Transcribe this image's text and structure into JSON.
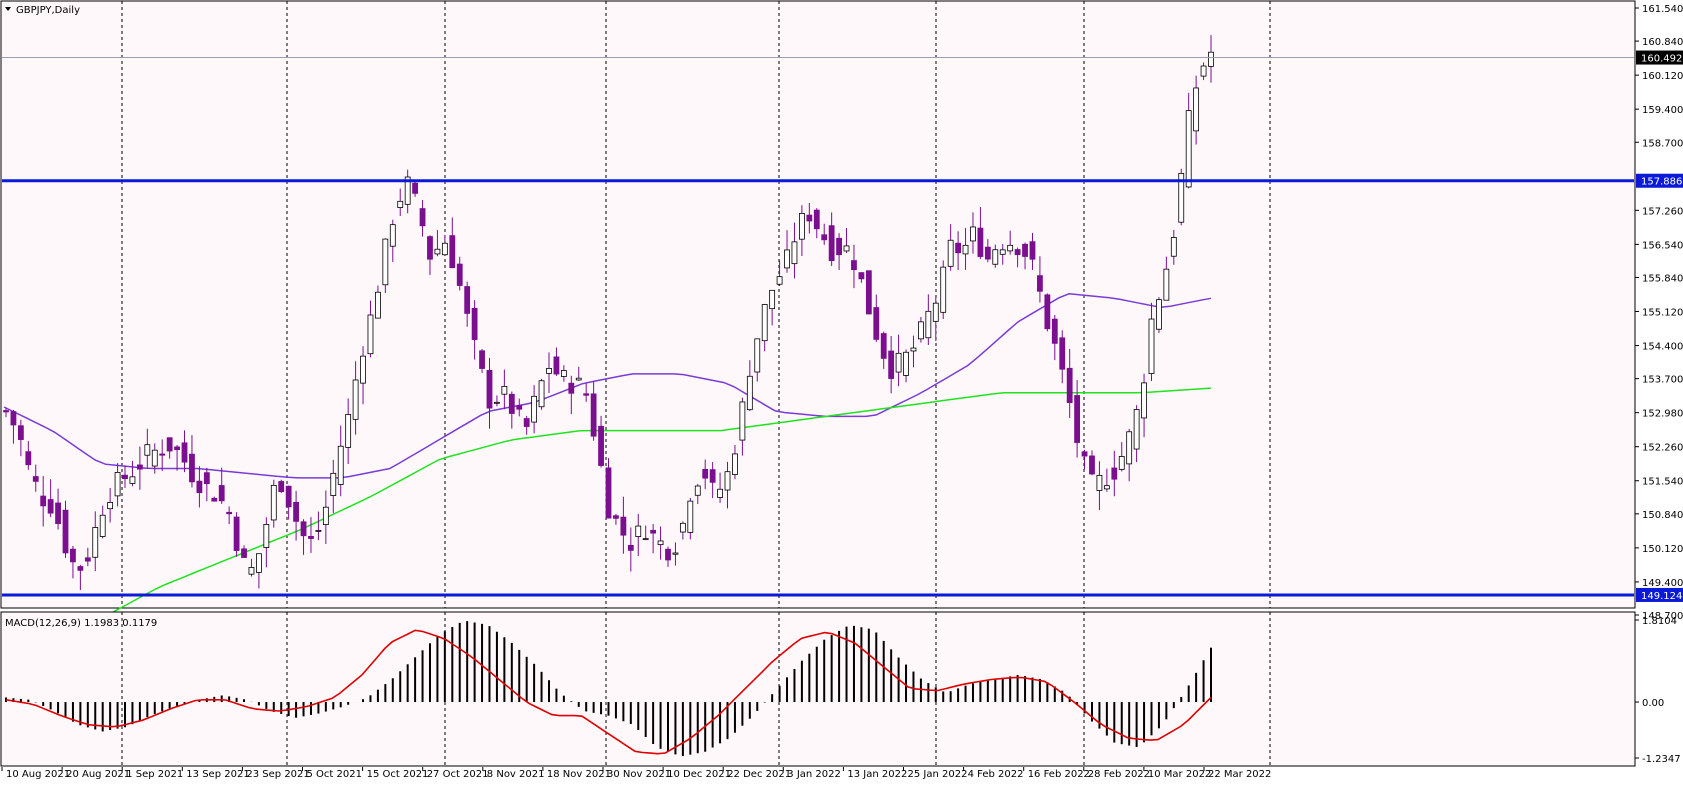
{
  "chart_data": {
    "type": "candlestick",
    "symbol_label": "GBPJPY,Daily",
    "colors": {
      "background": "#fff8fb",
      "bull_body": "#ffffff",
      "bear_body": "#7a0f8f",
      "wick": "#7a0f8f",
      "ma_fast": "#7a3bd6",
      "ma_slow": "#1ee41e",
      "hline": "#0a1ad6",
      "macd_hist": "#000000",
      "macd_signal": "#e00000",
      "grid": "#000000"
    },
    "price_axis": {
      "ylim": [
        148.7,
        161.54
      ],
      "ticks": [
        "161.540",
        "160.840",
        "160.120",
        "159.400",
        "158.700",
        "157.260",
        "156.540",
        "155.840",
        "155.120",
        "154.400",
        "153.700",
        "152.980",
        "152.260",
        "151.540",
        "150.840",
        "150.120",
        "149.400",
        "148.700"
      ],
      "current_price_label": "160.492",
      "current_price": 160.492
    },
    "horizontal_levels": [
      {
        "label": "157.886",
        "value": 157.886
      },
      {
        "label": "149.124",
        "value": 149.124
      }
    ],
    "x_labels": [
      "10 Aug 2021",
      "20 Aug 2021",
      "1 Sep 2021",
      "13 Sep 2021",
      "23 Sep 2021",
      "5 Oct 2021",
      "15 Oct 2021",
      "27 Oct 2021",
      "8 Nov 2021",
      "18 Nov 2021",
      "30 Nov 2021",
      "10 Dec 2021",
      "22 Dec 2021",
      "3 Jan 2022",
      "13 Jan 2022",
      "25 Jan 2022",
      "4 Feb 2022",
      "16 Feb 2022",
      "28 Feb 2022",
      "10 Mar 2022",
      "22 Mar 2022"
    ],
    "close_path": [
      153.0,
      152.6,
      151.7,
      151.2,
      151.0,
      150.2,
      149.6,
      150.0,
      150.9,
      151.4,
      151.6,
      151.8,
      152.1,
      152.2,
      152.3,
      152.0,
      151.6,
      151.4,
      151.2,
      150.8,
      149.8,
      149.6,
      150.6,
      151.7,
      151.1,
      150.4,
      150.2,
      150.9,
      152.0,
      152.9,
      154.2,
      155.1,
      156.3,
      157.4,
      157.8,
      157.2,
      156.2,
      156.7,
      156.1,
      155.0,
      154.0,
      153.2,
      153.4,
      153.0,
      152.6,
      153.4,
      154.0,
      153.7,
      153.6,
      153.5,
      152.3,
      151.0,
      150.5,
      150.2,
      150.6,
      150.3,
      150.1,
      150.3,
      151.4,
      151.8,
      151.2,
      151.6,
      152.6,
      154.0,
      155.0,
      155.7,
      156.1,
      156.9,
      157.2,
      156.8,
      156.4,
      156.5,
      156.1,
      155.2,
      154.4,
      153.9,
      154.1,
      154.4,
      155.0,
      155.5,
      156.5,
      156.4,
      156.8,
      156.2,
      156.6,
      156.6,
      156.5,
      156.0,
      155.0,
      154.2,
      153.2,
      152.0,
      151.4,
      151.6,
      151.8,
      152.4,
      153.2,
      155.0,
      155.8,
      157.0,
      159.0,
      160.2,
      160.6
    ],
    "ma_fast": [
      153.1,
      152.6,
      151.9,
      151.8,
      151.8,
      151.7,
      151.6,
      151.6,
      151.8,
      152.4,
      153.0,
      153.2,
      153.6,
      153.8,
      153.8,
      153.6,
      153.0,
      152.9,
      152.9,
      153.4,
      154.0,
      154.9,
      155.5,
      155.4,
      155.2,
      155.4
    ],
    "ma_slow": [
      148.5,
      149.3,
      149.9,
      150.5,
      151.2,
      152.0,
      152.4,
      152.6,
      152.6,
      152.6,
      152.8,
      153.0,
      153.2,
      153.4,
      153.4,
      153.4,
      153.5
    ],
    "macd": {
      "label": "MACD(12,26,9) 1.1983 0.1179",
      "ylim": [
        -1.2347,
        1.8104
      ],
      "ticks": [
        "1.8104",
        "0.00",
        "-1.2347"
      ],
      "hist_path": [
        0.1,
        0.05,
        -0.2,
        -0.5,
        -0.65,
        -0.55,
        -0.3,
        -0.1,
        0.05,
        0.15,
        0.05,
        -0.2,
        -0.35,
        -0.25,
        -0.1,
        0.1,
        0.5,
        1.0,
        1.5,
        1.8,
        1.7,
        1.3,
        0.8,
        0.2,
        -0.2,
        -0.3,
        -0.5,
        -1.0,
        -1.2,
        -1.1,
        -0.8,
        -0.3,
        0.3,
        0.9,
        1.4,
        1.7,
        1.6,
        1.0,
        0.5,
        0.2,
        0.4,
        0.5,
        0.6,
        0.5,
        0.2,
        -0.4,
        -0.9,
        -1.0,
        -0.5,
        0.3,
        1.2
      ],
      "signal_path": [
        0.05,
        -0.05,
        -0.3,
        -0.5,
        -0.55,
        -0.4,
        -0.15,
        0.05,
        0.05,
        -0.15,
        -0.2,
        -0.1,
        0.1,
        0.6,
        1.3,
        1.6,
        1.4,
        1.0,
        0.5,
        0.0,
        -0.3,
        -0.3,
        -0.7,
        -1.1,
        -1.15,
        -0.8,
        -0.3,
        0.3,
        0.9,
        1.4,
        1.55,
        1.3,
        0.8,
        0.3,
        0.25,
        0.4,
        0.5,
        0.55,
        0.45,
        0.0,
        -0.5,
        -0.8,
        -0.85,
        -0.5,
        0.1
      ]
    }
  }
}
